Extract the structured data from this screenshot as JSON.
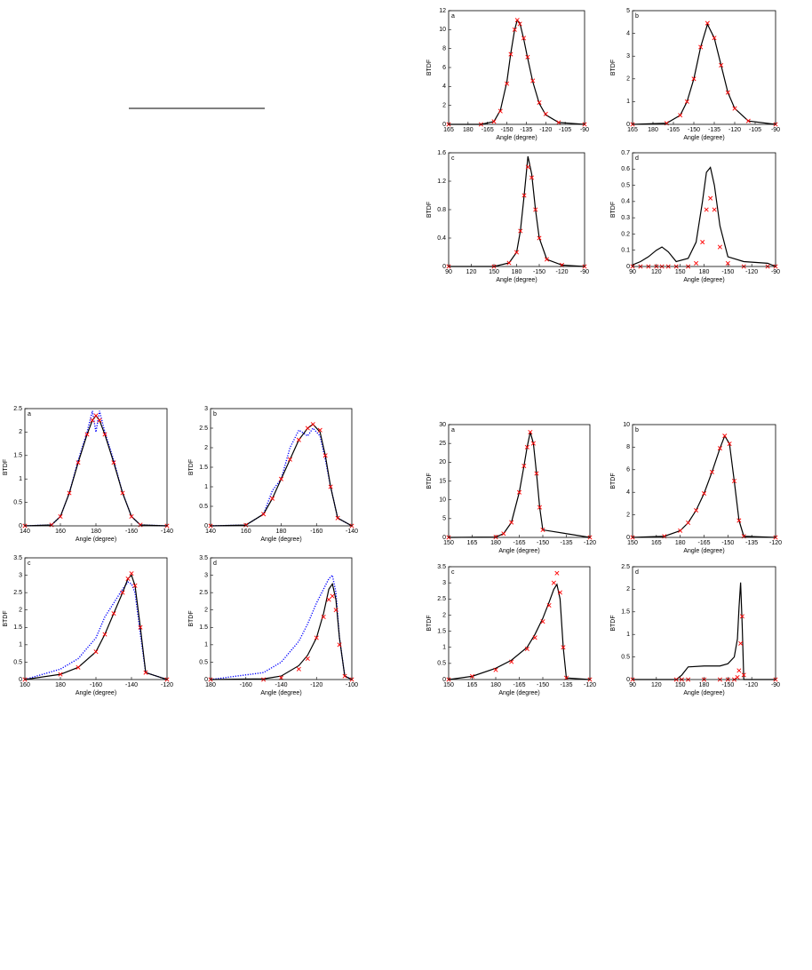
{
  "chart_data": [
    {
      "type": "line",
      "panel": "a",
      "ylabel": "BTDF",
      "xlabel": "Angle (degree)",
      "x": [
        165,
        190,
        200,
        205,
        210,
        213,
        216,
        218,
        220,
        223,
        226,
        230,
        235,
        240,
        250,
        270
      ],
      "xlim": [
        165,
        270
      ],
      "xticks": [
        165,
        180,
        {
          "value": 195,
          "label": "-165"
        },
        {
          "value": 210,
          "label": "-150"
        },
        {
          "value": 225,
          "label": "-135"
        },
        {
          "value": 240,
          "label": "-120"
        },
        {
          "value": 255,
          "label": "-105"
        },
        {
          "value": 270,
          "label": "-90"
        }
      ],
      "ylim": [
        0,
        12
      ],
      "yticks": [
        0,
        2,
        4,
        6,
        8,
        10,
        12
      ],
      "series": [
        {
          "color": "#000000",
          "values": [
            0,
            0,
            0.3,
            1.5,
            4.5,
            7.5,
            10,
            11,
            10.7,
            9,
            7,
            4.5,
            2.2,
            1,
            0.2,
            0
          ]
        },
        {
          "color": "#ff0000",
          "marker": "x",
          "values": [
            0,
            0,
            0.3,
            1.4,
            4.3,
            7.4,
            10,
            11,
            10.6,
            9.1,
            7.1,
            4.6,
            2.3,
            1.1,
            0.2,
            0
          ]
        }
      ]
    },
    {
      "type": "line",
      "panel": "b",
      "ylabel": "BTDF",
      "xlabel": "Angle (degree)",
      "x": [
        165,
        190,
        200,
        205,
        210,
        215,
        220,
        225,
        230,
        235,
        240,
        250,
        270
      ],
      "xlim": [
        165,
        270
      ],
      "xticks": [
        165,
        180,
        {
          "value": 195,
          "label": "-165"
        },
        {
          "value": 210,
          "label": "-150"
        },
        {
          "value": 225,
          "label": "-135"
        },
        {
          "value": 240,
          "label": "-120"
        },
        {
          "value": 255,
          "label": "-105"
        },
        {
          "value": 270,
          "label": "-90"
        }
      ],
      "ylim": [
        0,
        5
      ],
      "yticks": [
        0,
        1,
        2,
        3,
        4,
        5
      ],
      "series": [
        {
          "color": "#000000",
          "values": [
            0,
            0.05,
            0.4,
            1,
            2,
            3.4,
            4.4,
            3.8,
            2.6,
            1.4,
            0.7,
            0.15,
            0
          ]
        },
        {
          "color": "#ff0000",
          "marker": "x",
          "values": [
            0,
            0.05,
            0.4,
            1,
            2,
            3.4,
            4.45,
            3.8,
            2.6,
            1.4,
            0.7,
            0.15,
            0
          ]
        }
      ]
    },
    {
      "type": "line",
      "panel": "c",
      "ylabel": "BTDF",
      "xlabel": "Angle (degree)",
      "x": [
        90,
        150,
        170,
        180,
        185,
        190,
        195,
        200,
        205,
        210,
        220,
        240,
        270
      ],
      "xlim": [
        90,
        270
      ],
      "xticks": [
        90,
        120,
        150,
        180,
        {
          "value": 210,
          "label": "-150"
        },
        {
          "value": 240,
          "label": "-120"
        },
        {
          "value": 270,
          "label": "-90"
        }
      ],
      "ylim": [
        0,
        1.6
      ],
      "yticks": [
        0,
        0.4,
        0.8,
        1.2,
        1.6
      ],
      "series": [
        {
          "color": "#000000",
          "values": [
            0,
            0,
            0.05,
            0.2,
            0.5,
            1.0,
            1.55,
            1.3,
            0.8,
            0.4,
            0.1,
            0.02,
            0
          ]
        },
        {
          "color": "#ff0000",
          "marker": "x",
          "values": [
            0,
            0,
            0.05,
            0.2,
            0.5,
            1.0,
            1.4,
            1.25,
            0.8,
            0.4,
            0.1,
            0.02,
            0
          ]
        }
      ]
    },
    {
      "type": "line",
      "panel": "d",
      "ylabel": "BTDF",
      "xlabel": "Angle (degree)",
      "x": [
        90,
        100,
        110,
        120,
        127,
        135,
        145,
        160,
        170,
        178,
        183,
        188,
        193,
        200,
        210,
        230,
        260,
        270
      ],
      "xlim": [
        90,
        270
      ],
      "xticks": [
        90,
        120,
        150,
        180,
        {
          "value": 210,
          "label": "-150"
        },
        {
          "value": 240,
          "label": "-120"
        },
        {
          "value": 270,
          "label": "-90"
        }
      ],
      "ylim": [
        0,
        0.7
      ],
      "yticks": [
        0,
        0.1,
        0.2,
        0.3,
        0.4,
        0.5,
        0.6,
        0.7
      ],
      "series": [
        {
          "color": "#000000",
          "values": [
            0.01,
            0.03,
            0.06,
            0.1,
            0.12,
            0.09,
            0.03,
            0.05,
            0.15,
            0.4,
            0.58,
            0.61,
            0.5,
            0.25,
            0.06,
            0.03,
            0.02,
            0
          ]
        },
        {
          "color": "#ff0000",
          "marker": "x",
          "values": [
            0,
            0,
            0,
            0,
            0,
            0,
            0,
            0,
            0.02,
            0.15,
            0.35,
            0.42,
            0.35,
            0.12,
            0.02,
            0,
            0,
            0
          ]
        }
      ]
    },
    {
      "type": "line",
      "panel": "a",
      "ylabel": "BTDF",
      "xlabel": "Angle (degree)",
      "x": [
        140,
        155,
        160,
        165,
        170,
        175,
        178,
        180,
        182,
        185,
        190,
        195,
        200,
        205,
        220
      ],
      "xlim": [
        140,
        220
      ],
      "xticks": [
        140,
        160,
        180,
        {
          "value": 200,
          "label": "-160"
        },
        {
          "value": 220,
          "label": "-140"
        }
      ],
      "ylim": [
        0,
        2.5
      ],
      "yticks": [
        0,
        0.5,
        1,
        1.5,
        2,
        2.5
      ],
      "series": [
        {
          "color": "#0000ff",
          "style": "dotted",
          "values": [
            0,
            0.02,
            0.2,
            0.7,
            1.4,
            2.0,
            2.45,
            2.0,
            2.45,
            2.0,
            1.4,
            0.7,
            0.2,
            0.02,
            0
          ]
        },
        {
          "color": "#000000",
          "values": [
            0,
            0.02,
            0.2,
            0.7,
            1.35,
            1.95,
            2.25,
            2.35,
            2.25,
            1.95,
            1.35,
            0.7,
            0.2,
            0.02,
            0
          ]
        },
        {
          "color": "#ff0000",
          "marker": "x",
          "values": [
            0,
            0.02,
            0.2,
            0.7,
            1.35,
            1.95,
            2.25,
            2.35,
            2.25,
            1.95,
            1.35,
            0.7,
            0.2,
            0.02,
            0
          ]
        }
      ]
    },
    {
      "type": "line",
      "panel": "b",
      "ylabel": "BTDF",
      "xlabel": "Angle (degree)",
      "x": [
        140,
        160,
        170,
        175,
        180,
        185,
        190,
        195,
        198,
        202,
        205,
        208,
        212,
        220
      ],
      "xlim": [
        140,
        220
      ],
      "xticks": [
        140,
        160,
        180,
        {
          "value": 200,
          "label": "-160"
        },
        {
          "value": 220,
          "label": "-140"
        }
      ],
      "ylim": [
        0,
        3
      ],
      "yticks": [
        0,
        0.5,
        1,
        1.5,
        2,
        2.5,
        3
      ],
      "series": [
        {
          "color": "#0000ff",
          "style": "dotted",
          "values": [
            0,
            0.02,
            0.3,
            0.9,
            1.2,
            2.0,
            2.45,
            2.3,
            2.5,
            2.3,
            1.7,
            1.0,
            0.2,
            0
          ]
        },
        {
          "color": "#000000",
          "values": [
            0,
            0.02,
            0.3,
            0.7,
            1.2,
            1.7,
            2.2,
            2.5,
            2.6,
            2.4,
            1.8,
            1.0,
            0.2,
            0
          ]
        },
        {
          "color": "#ff0000",
          "marker": "x",
          "values": [
            0,
            0.02,
            0.3,
            0.7,
            1.2,
            1.7,
            2.2,
            2.5,
            2.6,
            2.45,
            1.8,
            1.0,
            0.2,
            0
          ]
        }
      ]
    },
    {
      "type": "line",
      "panel": "c",
      "ylabel": "BTDF",
      "xlabel": "Angle (degree)",
      "x": [
        160,
        180,
        190,
        200,
        205,
        210,
        215,
        218,
        220,
        222,
        225,
        228,
        240
      ],
      "xlim": [
        160,
        240
      ],
      "xticks": [
        160,
        180,
        {
          "value": 200,
          "label": "-160"
        },
        {
          "value": 220,
          "label": "-140"
        },
        {
          "value": 240,
          "label": "-120"
        }
      ],
      "ylim": [
        0,
        3.5
      ],
      "yticks": [
        0,
        0.5,
        1,
        1.5,
        2,
        2.5,
        3,
        3.5
      ],
      "series": [
        {
          "color": "#0000ff",
          "style": "dotted",
          "values": [
            0,
            0.3,
            0.6,
            1.2,
            1.8,
            2.2,
            2.6,
            2.8,
            2.75,
            2.5,
            1.3,
            0.2,
            0
          ]
        },
        {
          "color": "#000000",
          "values": [
            0,
            0.15,
            0.35,
            0.8,
            1.3,
            1.9,
            2.5,
            2.9,
            3.0,
            2.7,
            1.5,
            0.2,
            0
          ]
        },
        {
          "color": "#ff0000",
          "marker": "x",
          "values": [
            0,
            0.15,
            0.35,
            0.8,
            1.3,
            1.9,
            2.5,
            2.9,
            3.05,
            2.7,
            1.5,
            0.2,
            0
          ]
        }
      ]
    },
    {
      "type": "line",
      "panel": "d",
      "ylabel": "BTDF",
      "xlabel": "Angle (degree)",
      "x": [
        180,
        210,
        220,
        230,
        235,
        240,
        244,
        247,
        249,
        251,
        253,
        256,
        260
      ],
      "xlim": [
        180,
        260
      ],
      "xticks": [
        180,
        {
          "value": 200,
          "label": "-160"
        },
        {
          "value": 220,
          "label": "-140"
        },
        {
          "value": 240,
          "label": "-120"
        },
        {
          "value": 260,
          "label": "-100"
        }
      ],
      "ylim": [
        0,
        3.5
      ],
      "yticks": [
        0,
        0.5,
        1,
        1.5,
        2,
        2.5,
        3,
        3.5
      ],
      "series": [
        {
          "color": "#0000ff",
          "style": "dotted",
          "values": [
            0,
            0.2,
            0.5,
            1.1,
            1.6,
            2.2,
            2.6,
            2.9,
            3.0,
            2.5,
            1.2,
            0.1,
            0
          ]
        },
        {
          "color": "#000000",
          "values": [
            0,
            0.02,
            0.1,
            0.4,
            0.7,
            1.2,
            1.9,
            2.6,
            2.75,
            2.3,
            1.2,
            0.1,
            0
          ]
        },
        {
          "color": "#ff0000",
          "marker": "x",
          "values": [
            0,
            0,
            0.05,
            0.3,
            0.6,
            1.2,
            1.8,
            2.3,
            2.4,
            2.0,
            1.0,
            0.1,
            0
          ]
        }
      ]
    },
    {
      "type": "line",
      "panel": "a",
      "ylabel": "BTDF",
      "xlabel": "Angle (degree)",
      "x": [
        150,
        180,
        185,
        190,
        195,
        198,
        200,
        202,
        204,
        206,
        208,
        210,
        240
      ],
      "xlim": [
        150,
        240
      ],
      "xticks": [
        150,
        165,
        180,
        {
          "value": 195,
          "label": "-165"
        },
        {
          "value": 210,
          "label": "-150"
        },
        {
          "value": 225,
          "label": "-135"
        },
        {
          "value": 240,
          "label": "-120"
        }
      ],
      "ylim": [
        0,
        30
      ],
      "yticks": [
        0,
        5,
        10,
        15,
        20,
        25,
        30
      ],
      "series": [
        {
          "color": "#000000",
          "values": [
            0,
            0.1,
            1,
            4,
            12,
            19,
            24,
            28,
            25,
            17,
            8,
            2,
            0
          ]
        },
        {
          "color": "#ff0000",
          "marker": "x",
          "values": [
            0,
            0.1,
            1,
            4,
            12,
            19,
            24,
            28,
            25,
            17,
            8,
            2,
            0
          ]
        }
      ]
    },
    {
      "type": "line",
      "panel": "b",
      "ylabel": "BTDF",
      "xlabel": "Angle (degree)",
      "x": [
        150,
        170,
        180,
        185,
        190,
        195,
        200,
        205,
        208,
        211,
        214,
        217,
        220,
        240
      ],
      "xlim": [
        150,
        240
      ],
      "xticks": [
        150,
        165,
        180,
        {
          "value": 195,
          "label": "-165"
        },
        {
          "value": 210,
          "label": "-150"
        },
        {
          "value": 225,
          "label": "-135"
        },
        {
          "value": 240,
          "label": "-120"
        }
      ],
      "ylim": [
        0,
        10
      ],
      "yticks": [
        0,
        2,
        4,
        6,
        8,
        10
      ],
      "series": [
        {
          "color": "#000000",
          "values": [
            0,
            0.1,
            0.6,
            1.3,
            2.4,
            3.9,
            5.8,
            7.9,
            9,
            8.3,
            5,
            1.5,
            0.1,
            0
          ]
        },
        {
          "color": "#ff0000",
          "marker": "x",
          "values": [
            0,
            0.1,
            0.6,
            1.3,
            2.4,
            3.9,
            5.8,
            7.9,
            9,
            8.3,
            5,
            1.5,
            0.1,
            0
          ]
        }
      ]
    },
    {
      "type": "line",
      "panel": "c",
      "ylabel": "BTDF",
      "xlabel": "Angle (degree)",
      "x": [
        150,
        165,
        180,
        190,
        200,
        205,
        210,
        214,
        217,
        219,
        221,
        223,
        225,
        240
      ],
      "xlim": [
        150,
        240
      ],
      "xticks": [
        150,
        165,
        180,
        {
          "value": 195,
          "label": "-165"
        },
        {
          "value": 210,
          "label": "-150"
        },
        {
          "value": 225,
          "label": "-135"
        },
        {
          "value": 240,
          "label": "-120"
        }
      ],
      "ylim": [
        0,
        3.5
      ],
      "yticks": [
        0,
        0.5,
        1,
        1.5,
        2,
        2.5,
        3,
        3.5
      ],
      "series": [
        {
          "color": "#000000",
          "values": [
            0,
            0.1,
            0.35,
            0.6,
            1.0,
            1.4,
            1.9,
            2.4,
            2.8,
            2.95,
            2.5,
            1.0,
            0.05,
            0
          ]
        },
        {
          "color": "#ff0000",
          "marker": "x",
          "values": [
            0,
            0.1,
            0.3,
            0.55,
            0.95,
            1.3,
            1.8,
            2.3,
            3.0,
            3.3,
            2.7,
            1.0,
            0.05,
            0
          ]
        }
      ]
    },
    {
      "type": "line",
      "panel": "d",
      "ylabel": "BTDF",
      "xlabel": "Angle (degree)",
      "x": [
        90,
        145,
        152,
        160,
        180,
        200,
        210,
        218,
        222,
        224,
        226,
        228,
        230,
        270
      ],
      "xlim": [
        90,
        270
      ],
      "xticks": [
        90,
        120,
        150,
        180,
        {
          "value": 210,
          "label": "-150"
        },
        {
          "value": 240,
          "label": "-120"
        },
        {
          "value": 270,
          "label": "-90"
        }
      ],
      "ylim": [
        0,
        2.5
      ],
      "yticks": [
        0,
        0.5,
        1,
        1.5,
        2,
        2.5
      ],
      "series": [
        {
          "color": "#000000",
          "values": [
            0,
            0,
            0.1,
            0.28,
            0.3,
            0.3,
            0.35,
            0.5,
            0.9,
            1.6,
            2.15,
            1.2,
            0,
            0
          ]
        },
        {
          "color": "#ff0000",
          "marker": "x",
          "values": [
            0,
            0,
            0,
            0,
            0,
            0,
            0,
            0,
            0.05,
            0.2,
            0.8,
            1.4,
            0.1,
            0
          ]
        }
      ]
    }
  ]
}
